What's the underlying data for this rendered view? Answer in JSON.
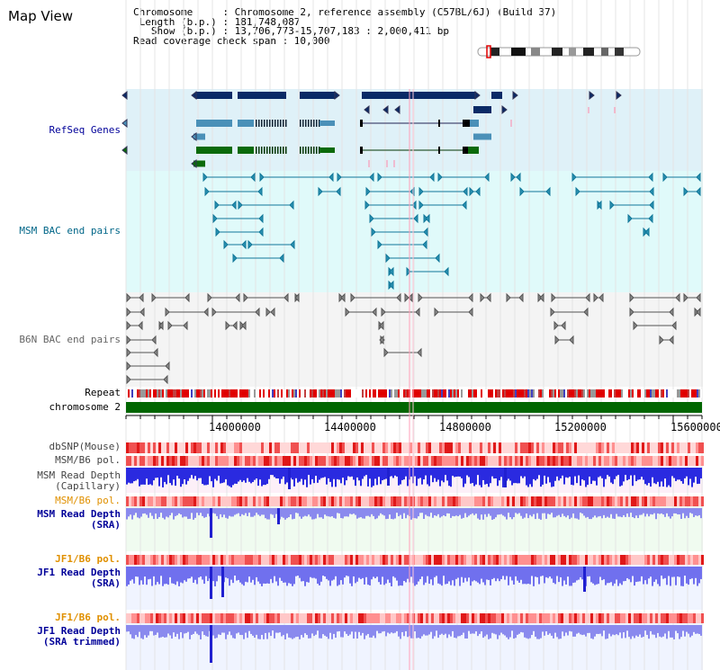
{
  "page": {
    "title": "Map View"
  },
  "info": {
    "chromosome_line": "Chromosome     : Chromosome 2, reference assembly (C57BL/6J) (Build 37)",
    "length_line": "Length (b.p.) : 181,748,087",
    "show_line": "  Show (b.p.) : 13,706,773-15,707,183 : 2,000,411 bp",
    "coverage_line": "Read coverage check span : 10,000"
  },
  "tracks": {
    "refseq": "RefSeq Genes",
    "msm_bac": "MSM BAC end pairs",
    "b6n_bac": "B6N BAC end pairs",
    "repeat": "Repeat",
    "chromosome": "chromosome 2",
    "dbsnp": "dbSNP(Mouse)",
    "msm_b6_pol_1": "MSM/B6 pol.",
    "msm_read_depth_cap_1": "MSM Read Depth",
    "msm_read_depth_cap_2": "(Capillary)",
    "msm_b6_pol_2": "MSM/B6 pol.",
    "msm_read_depth_sra_1": "MSM Read Depth",
    "msm_read_depth_sra_2": "(SRA)",
    "jf1_b6_pol_1": "JF1/B6 pol.",
    "jf1_read_depth_sra_1": "JF1 Read Depth",
    "jf1_read_depth_sra_2": "(SRA)",
    "jf1_b6_pol_2": "JF1/B6 pol.",
    "jf1_read_depth_trim_1": "JF1 Read Depth",
    "jf1_read_depth_trim_2": "(SRA trimmed)"
  },
  "axis": {
    "ticks": [
      "14000000",
      "14400000",
      "14800000",
      "15200000",
      "15600000"
    ],
    "start": 13706773,
    "end": 15707183
  },
  "colors": {
    "refseq_bg": "#dff1f8",
    "msm_bg": "#e0fafa",
    "b6n_bg": "#f0f0f0",
    "refseq_label": "#000099",
    "msm_label": "#006688",
    "b6n_label": "#666666",
    "pol_label": "#e09000",
    "depth_label": "#000099",
    "chromosome_green": "#006600"
  }
}
